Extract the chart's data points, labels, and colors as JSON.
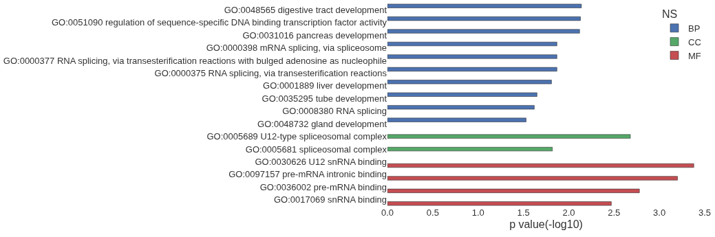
{
  "chart_data": {
    "type": "bar",
    "orientation": "horizontal",
    "xlabel": "p value(-log10)",
    "legend_title": "NS",
    "legend": "top right",
    "categories": [
      "GO:0048565 digestive tract development",
      "GO:0051090 regulation of sequence-specific DNA binding transcription factor activity",
      "GO:0031016 pancreas development",
      "GO:0000398 mRNA splicing, via spliceosome",
      "GO:0000377 RNA splicing, via transesterification reactions with bulged adenosine as nucleophile",
      "GO:0000375 RNA splicing, via transesterification reactions",
      "GO:0001889 liver development",
      "GO:0035295 tube development",
      "GO:0008380 RNA splicing",
      "GO:0048732 gland development",
      "GO:0005689 U12-type spliceosomal complex",
      "GO:0005681 spliceosomal complex",
      "GO:0030626 U12 snRNA binding",
      "GO:0097157 pre-mRNA intronic binding",
      "GO:0036002 pre-mRNA binding",
      "GO:0017069 snRNA binding"
    ],
    "series": [
      {
        "name": "BP",
        "color": "#4c72b0",
        "values": [
          2.14,
          2.13,
          2.12,
          1.87,
          1.87,
          1.87,
          1.81,
          1.65,
          1.62,
          1.53,
          null,
          null,
          null,
          null,
          null,
          null
        ]
      },
      {
        "name": "CC",
        "color": "#55a868",
        "values": [
          null,
          null,
          null,
          null,
          null,
          null,
          null,
          null,
          null,
          null,
          2.68,
          1.82,
          null,
          null,
          null,
          null
        ]
      },
      {
        "name": "MF",
        "color": "#c44e52",
        "values": [
          null,
          null,
          null,
          null,
          null,
          null,
          null,
          null,
          null,
          null,
          null,
          null,
          3.38,
          3.2,
          2.78,
          2.47
        ]
      }
    ],
    "xlim": [
      0,
      3.5
    ],
    "xticks": [
      {
        "value": 0,
        "label": "0.0"
      },
      {
        "value": 0.5,
        "label": "0.5"
      },
      {
        "value": 1,
        "label": "1.0"
      },
      {
        "value": 1.5,
        "label": "1.5"
      },
      {
        "value": 2,
        "label": "2.0"
      },
      {
        "value": 2.5,
        "label": "2.5"
      },
      {
        "value": 3,
        "label": "3.0"
      },
      {
        "value": 3.5,
        "label": "3.5"
      }
    ]
  }
}
